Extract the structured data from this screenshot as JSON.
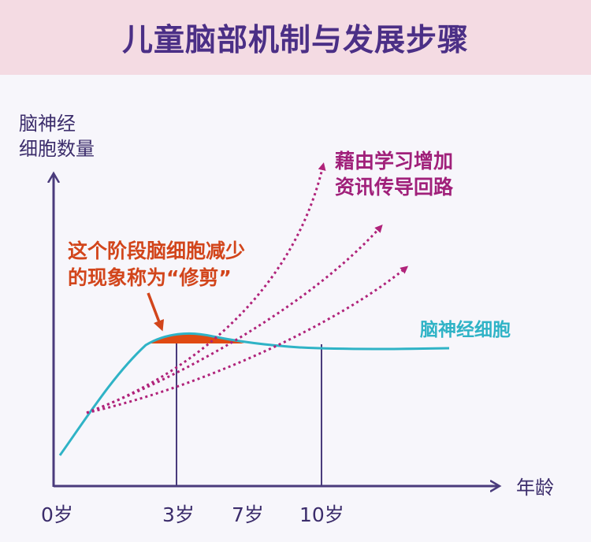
{
  "title": "儿童脑部机制与发展步骤",
  "y_axis_label": [
    "脑神经",
    "细胞数量"
  ],
  "x_axis_label": "年龄",
  "x_ticks": [
    "0岁",
    "3岁",
    "7岁",
    "10岁"
  ],
  "annotation_learning": [
    "藉由学习增加",
    "资讯传导回路"
  ],
  "annotation_pruning": [
    "这个阶段脑细胞减少",
    "的现象称为“修剪”"
  ],
  "curve_label": "脑神经细胞",
  "colors": {
    "title_band": "#f4dbe3",
    "title_text": "#4b2f86",
    "axis": "#4a3b7c",
    "neuron_curve": "#2fb3c6",
    "pathways": "#b0237a",
    "pruning": "#e04a12",
    "learning_text": "#a0207a",
    "pruning_text": "#d2451b"
  }
}
